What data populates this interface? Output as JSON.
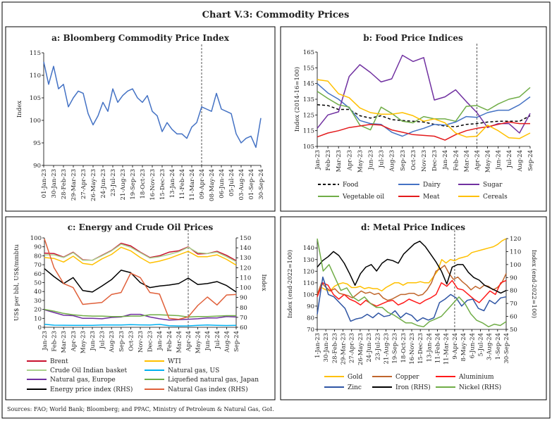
{
  "title": "Chart V.3: Commodity Prices",
  "source": "Sources: FAO; World Bank; Bloomberg; and PPAC, Ministry of Petroleum & Natural Gas, GoI.",
  "chart_data": [
    {
      "type": "line",
      "title": "a: Bloomberg Commodity Price Index",
      "ylabel": "Index",
      "ylim": [
        90,
        115
      ],
      "yticks": [
        90,
        95,
        100,
        105,
        110,
        115
      ],
      "x_ticks": [
        "01-Jan-23",
        "30-Jan-23",
        "28-Feb-23",
        "29-Mar-23",
        "27-Apr-23",
        "26-May-23",
        "24-Jun-23",
        "23-Jul-23",
        "21-Aug-23",
        "19-Sep-23",
        "18-Oct-23",
        "16-Nov-23",
        "15-Dec-23",
        "13-Jan-24",
        "11-Feb-24",
        "11-Mar-24",
        "09-Apr-24",
        "08-May-24",
        "06-Jun-24",
        "05-Jul-24",
        "03-Aug-24",
        "01-Sep-24",
        "30-Sep-24"
      ],
      "marker_line_at": "09-Apr-24",
      "series": [
        {
          "color": "#4472c4",
          "values": [
            113,
            108,
            112,
            107,
            108,
            103,
            105,
            106.5,
            106,
            101.5,
            99,
            101,
            104,
            102,
            107,
            104,
            105.5,
            106.5,
            107,
            105,
            104,
            105.5,
            102,
            101,
            97.5,
            99.5,
            98,
            97,
            97,
            96,
            98.5,
            99.5,
            103,
            102.5,
            102,
            106,
            102.5,
            102,
            101.5,
            97,
            95,
            96,
            96.5,
            94,
            100.5
          ]
        }
      ]
    },
    {
      "type": "line",
      "title": "b: Food Price Indices",
      "ylabel": "Index (2014-16=100)",
      "ylim": [
        105,
        165
      ],
      "yticks": [
        105,
        115,
        125,
        135,
        145,
        155,
        165
      ],
      "categories": [
        "Jan-23",
        "Feb-23",
        "Mar-23",
        "Apr-23",
        "May-23",
        "Jun-23",
        "Jul-23",
        "Aug-23",
        "Sep-23",
        "Oct-23",
        "Nov-23",
        "Dec-23",
        "Jan-24",
        "Feb-24",
        "Mar-24",
        "Apr-24",
        "May-24",
        "Jun-24",
        "Jul-24",
        "Aug-24",
        "Sep-24"
      ],
      "marker_line_at": "Apr-24",
      "series": [
        {
          "name": "Food",
          "color": "#000000",
          "dashed": true,
          "values": [
            131.5,
            131,
            128.5,
            128.5,
            124.5,
            123,
            124.5,
            122,
            121.5,
            121,
            120.5,
            119,
            118,
            117.5,
            119,
            119.5,
            120.5,
            121,
            121,
            121,
            124.5
          ]
        },
        {
          "name": "Dairy",
          "color": "#4472c4",
          "values": [
            145,
            139,
            135,
            129.5,
            121.5,
            119.5,
            119,
            114,
            111.5,
            114.5,
            116.5,
            119,
            118.5,
            120.5,
            124,
            123.5,
            126.5,
            128,
            128,
            131.5,
            136.5
          ]
        },
        {
          "name": "Sugar",
          "color": "#7030a0",
          "values": [
            116.5,
            125,
            127,
            149.5,
            157,
            152,
            146,
            148,
            163,
            159,
            161.5,
            134.5,
            136.5,
            141,
            133.5,
            126.5,
            117,
            119.5,
            119.5,
            113.5,
            126
          ]
        },
        {
          "name": "Vegetable oil",
          "color": "#70ad47",
          "values": [
            140,
            135.5,
            131.5,
            130,
            118.5,
            115.5,
            130,
            126,
            121,
            120,
            124,
            122.5,
            122.5,
            121,
            130.5,
            131,
            128,
            132,
            135,
            136.5,
            142.5
          ]
        },
        {
          "name": "Meat",
          "color": "#e31a1c",
          "values": [
            111,
            113.5,
            115,
            117,
            118,
            119,
            118.5,
            115.5,
            114,
            112.5,
            112,
            111.5,
            109,
            112.5,
            115,
            116.5,
            117.5,
            119,
            120.5,
            119.5,
            119.5
          ]
        },
        {
          "name": "Cereals",
          "color": "#ffc000",
          "values": [
            147.5,
            146.5,
            138.5,
            136,
            129.5,
            126.5,
            125.5,
            125.5,
            126.5,
            124.5,
            121,
            122.5,
            120,
            113.5,
            111,
            111.5,
            118.5,
            115,
            110.5,
            110,
            113.5
          ]
        }
      ]
    },
    {
      "type": "line",
      "title": "c: Energy and Crude Oil Prices",
      "ylabel": "US$ per bbl, US$/mmbtu",
      "ylabel_right": "Index",
      "ylim": [
        0,
        100
      ],
      "yticks": [
        0,
        10,
        20,
        30,
        40,
        50,
        60,
        70,
        80,
        90,
        100
      ],
      "ylim_right": [
        60,
        150
      ],
      "yticks_right": [
        60,
        70,
        80,
        90,
        100,
        110,
        120,
        130,
        140,
        150
      ],
      "categories": [
        "Jan-23",
        "Feb-23",
        "Mar-23",
        "Apr-23",
        "May-23",
        "Jun-23",
        "Jul-23",
        "Aug-23",
        "Sep-23",
        "Oct-23",
        "Nov-23",
        "Dec-23",
        "Jan-24",
        "Feb-24",
        "Mar-24",
        "Apr-24",
        "May-24",
        "Jun-24",
        "Jul-24",
        "Aug-24",
        "Sep-24"
      ],
      "marker_line_at": "Apr-24",
      "series": [
        {
          "name": "Brent",
          "color": "#c8102e",
          "values": [
            83,
            82.5,
            78.5,
            84,
            75.5,
            75,
            80.5,
            86,
            94,
            91,
            84,
            78,
            80,
            84,
            85.5,
            90,
            82,
            82.5,
            85,
            80.5,
            74.5
          ]
        },
        {
          "name": "WTI",
          "color": "#ffc000",
          "values": [
            78,
            77,
            73,
            79.5,
            71.5,
            70,
            76.5,
            81.5,
            89.5,
            85.5,
            78,
            72,
            74,
            77,
            81,
            85,
            79,
            79,
            81,
            76,
            69.5
          ]
        },
        {
          "name": "Crude Oil Indian basket",
          "color": "#a9d18e",
          "values": [
            81,
            81,
            78,
            83.5,
            75,
            75,
            80,
            85.5,
            93,
            89.5,
            83.5,
            77.5,
            79,
            81.5,
            84.5,
            89.5,
            83.5,
            82.5,
            84,
            79,
            73.5
          ]
        },
        {
          "name": "Natural gas, US",
          "color": "#00b0f0",
          "values": [
            3.3,
            2.4,
            2.3,
            2.2,
            2.2,
            2.2,
            2.5,
            2.6,
            2.6,
            3,
            2.7,
            2.5,
            3.2,
            1.7,
            1.5,
            1.6,
            2.1,
            2.5,
            2.1,
            2,
            2.2
          ]
        },
        {
          "name": "Natural gas, Europe",
          "color": "#7030a0",
          "values": [
            19.5,
            16.5,
            13.5,
            13,
            10,
            10,
            9.5,
            11,
            11.5,
            14.5,
            14.5,
            11.5,
            9.5,
            8,
            8.5,
            9,
            9.5,
            10.5,
            10.5,
            12,
            11.5
          ]
        },
        {
          "name": "Liquefied natural gas, Japan",
          "color": "#70ad47",
          "values": [
            20,
            18,
            15.5,
            14,
            13,
            12.5,
            12.5,
            12,
            12,
            12.5,
            12.5,
            14,
            14,
            13.5,
            13,
            11.5,
            12,
            12,
            12.5,
            13,
            13
          ]
        },
        {
          "name": "Energy price index (RHS)",
          "color": "#000000",
          "axis": "right",
          "values": [
            119,
            111,
            104,
            110,
            97,
            95.5,
            101.5,
            108,
            117.5,
            115,
            105,
            100,
            101.5,
            102.5,
            104,
            109.5,
            103,
            104,
            106,
            102,
            95.5
          ]
        },
        {
          "name": "Natural Gas index (RHS)",
          "color": "#e0603a",
          "axis": "right",
          "values": [
            149,
            120,
            104,
            100,
            83,
            84,
            85,
            93,
            95,
            114.5,
            110,
            95,
            93.5,
            69,
            68,
            70.5,
            82,
            90.5,
            82.5,
            92.5,
            93
          ]
        }
      ]
    },
    {
      "type": "line",
      "title": "d: Metal Price Indices",
      "ylabel": "Index (end-2022=100)",
      "ylabel_right": "Index (end-2022=100)",
      "ylim": [
        70,
        148
      ],
      "yticks": [
        70,
        80,
        90,
        100,
        110,
        120,
        130,
        140
      ],
      "ylim_right": [
        50,
        120
      ],
      "yticks_right": [
        50,
        60,
        70,
        80,
        90,
        100,
        110,
        120
      ],
      "x_ticks": [
        "1-Jan-23",
        "30-Jan-23",
        "28-Feb-23",
        "29-Mar-23",
        "27-Apr-23",
        "26-May-23",
        "24-Jun-23",
        "23-Jul-23",
        "21-Aug-23",
        "19-Sep-23",
        "18-Oct-23",
        "16-Nov-23",
        "15-Dec-23",
        "13-Jan-24",
        "11-Feb-24",
        "11-Mar-24",
        "9-Apr-24",
        "8-May-24",
        "6-Jun-24",
        "5-Jul-24",
        "3-Aug-24",
        "1-Sep-24",
        "30-Sep-24"
      ],
      "marker_line_at": "9-Apr-24",
      "series": [
        {
          "name": "Gold",
          "color": "#ffc000",
          "values": [
            100,
            106,
            104,
            103,
            107,
            109,
            110,
            109,
            106,
            106,
            107,
            105,
            106,
            105,
            105,
            103,
            106,
            108,
            110,
            110,
            108,
            110,
            110,
            110,
            111,
            110,
            110,
            115,
            120,
            130,
            127,
            130,
            129,
            131,
            132,
            133,
            136,
            137,
            138,
            139,
            140,
            141,
            143,
            146,
            148
          ]
        },
        {
          "name": "Copper",
          "color": "#c0662c",
          "values": [
            100,
            110,
            106,
            103,
            105,
            101,
            100,
            99,
            97,
            100,
            103,
            101,
            102,
            100,
            101,
            97,
            95,
            96,
            98,
            100,
            100,
            101,
            101,
            99,
            100,
            104,
            110,
            120,
            122,
            125,
            118,
            113,
            115,
            111,
            108,
            104,
            107,
            105,
            108,
            107,
            104,
            106,
            110,
            118
          ]
        },
        {
          "name": "Aluminium",
          "color": "#ff1a1a",
          "values": [
            98,
            110,
            108,
            100,
            96,
            100,
            96,
            94,
            91,
            95,
            92,
            90,
            92,
            94,
            95,
            91,
            93,
            96,
            94,
            92,
            95,
            97,
            100,
            110,
            107,
            112,
            105,
            104,
            100,
            96,
            93,
            98,
            103,
            100,
            110,
            112
          ]
        },
        {
          "name": "Zinc",
          "color": "#2f55a4",
          "values": [
            83,
            115,
            100,
            98,
            93,
            88,
            77,
            79,
            80,
            83,
            80,
            84,
            81,
            82,
            86,
            80,
            84,
            82,
            77,
            80,
            78,
            80,
            93,
            96,
            100,
            97,
            90,
            95,
            96,
            88,
            86,
            95,
            92,
            97,
            98
          ]
        },
        {
          "name": "Iron (RHS)",
          "color": "#000000",
          "axis": "right",
          "values": [
            98,
            103,
            106,
            110,
            107,
            101,
            93,
            84,
            93,
            98,
            100,
            95,
            101,
            104,
            103,
            101,
            108,
            112,
            116,
            118,
            114,
            108,
            102,
            95,
            85,
            98,
            100,
            100,
            94,
            90,
            88,
            84,
            82,
            80,
            78,
            80
          ]
        },
        {
          "name": "Nickel (RHS)",
          "color": "#70ad47",
          "axis": "right",
          "values": [
            120,
            95,
            100,
            90,
            80,
            82,
            75,
            72,
            75,
            70,
            67,
            67,
            63,
            61,
            58,
            55,
            55,
            53,
            52,
            56,
            58,
            60,
            65,
            70,
            75,
            70,
            62,
            57,
            55,
            52,
            54,
            53,
            56
          ]
        }
      ]
    }
  ]
}
